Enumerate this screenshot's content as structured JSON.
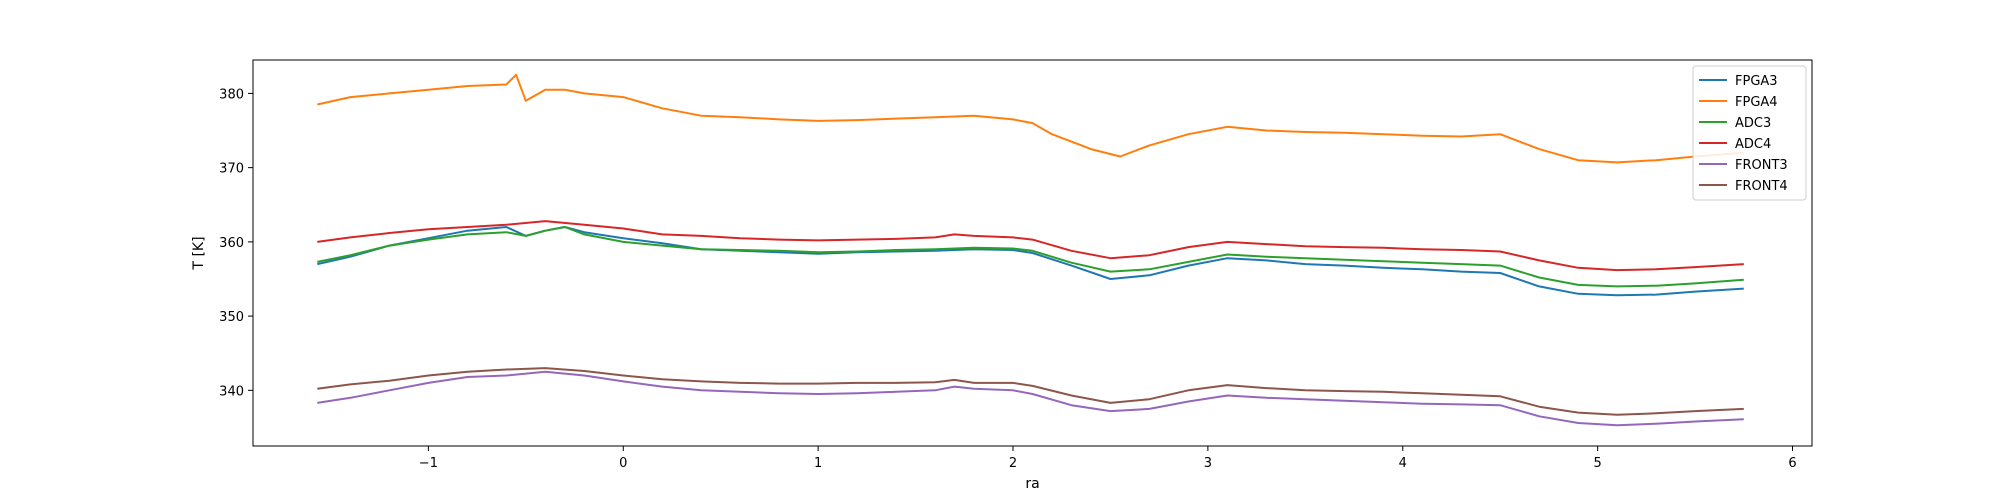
{
  "chart_data": {
    "type": "line",
    "title": "",
    "xlabel": "ra",
    "ylabel": "T [K]",
    "xlim": [
      -1.9,
      6.1
    ],
    "ylim": [
      332.5,
      384.5
    ],
    "xticks": [
      -1,
      0,
      1,
      2,
      3,
      4,
      5,
      6
    ],
    "xtick_labels": [
      "−1",
      "0",
      "1",
      "2",
      "3",
      "4",
      "5",
      "6"
    ],
    "yticks": [
      340,
      350,
      360,
      370,
      380
    ],
    "ytick_labels": [
      "340",
      "350",
      "360",
      "370",
      "380"
    ],
    "grid": false,
    "legend_position": "top-right",
    "series": [
      {
        "name": "FPGA3",
        "color": "#1f77b4",
        "x": [
          -1.57,
          -1.4,
          -1.2,
          -1.0,
          -0.8,
          -0.6,
          -0.5,
          -0.4,
          -0.3,
          -0.2,
          0.0,
          0.2,
          0.4,
          0.6,
          0.8,
          1.0,
          1.2,
          1.4,
          1.6,
          1.8,
          2.0,
          2.1,
          2.3,
          2.5,
          2.7,
          2.9,
          3.1,
          3.3,
          3.5,
          3.7,
          3.9,
          4.1,
          4.3,
          4.5,
          4.7,
          4.9,
          5.1,
          5.3,
          5.5,
          5.75
        ],
        "y": [
          357.0,
          358.0,
          359.5,
          360.5,
          361.5,
          362.0,
          360.8,
          361.5,
          362.0,
          361.3,
          360.5,
          359.8,
          359.0,
          358.8,
          358.6,
          358.4,
          358.6,
          358.7,
          358.8,
          359.0,
          358.9,
          358.5,
          356.8,
          355.0,
          355.5,
          356.8,
          357.8,
          357.5,
          357.0,
          356.8,
          356.5,
          356.3,
          356.0,
          355.8,
          354.0,
          353.0,
          352.8,
          352.9,
          353.3,
          353.7
        ]
      },
      {
        "name": "FPGA4",
        "color": "#ff7f0e",
        "x": [
          -1.57,
          -1.4,
          -1.2,
          -1.0,
          -0.8,
          -0.6,
          -0.55,
          -0.5,
          -0.4,
          -0.3,
          -0.2,
          0.0,
          0.2,
          0.4,
          0.6,
          0.8,
          1.0,
          1.2,
          1.4,
          1.6,
          1.8,
          2.0,
          2.1,
          2.2,
          2.4,
          2.55,
          2.7,
          2.9,
          3.1,
          3.3,
          3.5,
          3.7,
          3.9,
          4.1,
          4.3,
          4.5,
          4.7,
          4.9,
          5.1,
          5.3,
          5.5,
          5.75
        ],
        "y": [
          378.5,
          379.5,
          380.0,
          380.5,
          381.0,
          381.2,
          382.5,
          379.0,
          380.5,
          380.5,
          380.0,
          379.5,
          378.0,
          377.0,
          376.8,
          376.5,
          376.3,
          376.4,
          376.6,
          376.8,
          377.0,
          376.5,
          376.0,
          374.5,
          372.5,
          371.5,
          373.0,
          374.5,
          375.5,
          375.0,
          374.8,
          374.7,
          374.5,
          374.3,
          374.2,
          374.5,
          372.5,
          371.0,
          370.7,
          371.0,
          371.5,
          372.0
        ]
      },
      {
        "name": "ADC3",
        "color": "#2ca02c",
        "x": [
          -1.57,
          -1.4,
          -1.2,
          -1.0,
          -0.8,
          -0.6,
          -0.5,
          -0.4,
          -0.3,
          -0.2,
          0.0,
          0.2,
          0.4,
          0.6,
          0.8,
          1.0,
          1.2,
          1.4,
          1.6,
          1.8,
          2.0,
          2.1,
          2.3,
          2.5,
          2.7,
          2.9,
          3.1,
          3.3,
          3.5,
          3.7,
          3.9,
          4.1,
          4.3,
          4.5,
          4.7,
          4.9,
          5.1,
          5.3,
          5.5,
          5.75
        ],
        "y": [
          357.3,
          358.2,
          359.5,
          360.3,
          361.0,
          361.3,
          360.8,
          361.5,
          362.0,
          361.0,
          360.0,
          359.5,
          359.0,
          358.9,
          358.8,
          358.6,
          358.7,
          358.9,
          359.0,
          359.2,
          359.1,
          358.8,
          357.2,
          356.0,
          356.3,
          357.3,
          358.3,
          358.0,
          357.8,
          357.6,
          357.4,
          357.2,
          357.0,
          356.8,
          355.2,
          354.2,
          354.0,
          354.1,
          354.4,
          354.9
        ]
      },
      {
        "name": "ADC4",
        "color": "#d62728",
        "x": [
          -1.57,
          -1.4,
          -1.2,
          -1.0,
          -0.8,
          -0.6,
          -0.4,
          -0.2,
          0.0,
          0.2,
          0.4,
          0.6,
          0.8,
          1.0,
          1.2,
          1.4,
          1.6,
          1.7,
          1.8,
          2.0,
          2.1,
          2.3,
          2.5,
          2.7,
          2.9,
          3.1,
          3.3,
          3.5,
          3.7,
          3.9,
          4.1,
          4.3,
          4.5,
          4.7,
          4.9,
          5.1,
          5.3,
          5.5,
          5.75
        ],
        "y": [
          360.0,
          360.6,
          361.2,
          361.7,
          362.0,
          362.3,
          362.8,
          362.3,
          361.8,
          361.0,
          360.8,
          360.5,
          360.3,
          360.2,
          360.3,
          360.4,
          360.6,
          361.0,
          360.8,
          360.6,
          360.3,
          358.8,
          357.8,
          358.2,
          359.3,
          360.0,
          359.7,
          359.4,
          359.3,
          359.2,
          359.0,
          358.9,
          358.7,
          357.5,
          356.5,
          356.2,
          356.3,
          356.6,
          357.0
        ]
      },
      {
        "name": "FRONT3",
        "color": "#9467bd",
        "x": [
          -1.57,
          -1.4,
          -1.2,
          -1.0,
          -0.8,
          -0.6,
          -0.4,
          -0.2,
          0.0,
          0.2,
          0.4,
          0.6,
          0.8,
          1.0,
          1.2,
          1.4,
          1.6,
          1.7,
          1.8,
          2.0,
          2.1,
          2.3,
          2.5,
          2.7,
          2.9,
          3.1,
          3.3,
          3.5,
          3.7,
          3.9,
          4.1,
          4.3,
          4.5,
          4.7,
          4.9,
          5.1,
          5.3,
          5.5,
          5.75
        ],
        "y": [
          338.3,
          339.0,
          340.0,
          341.0,
          341.8,
          342.0,
          342.5,
          342.0,
          341.2,
          340.5,
          340.0,
          339.8,
          339.6,
          339.5,
          339.6,
          339.8,
          340.0,
          340.5,
          340.2,
          340.0,
          339.5,
          338.0,
          337.2,
          337.5,
          338.5,
          339.3,
          339.0,
          338.8,
          338.6,
          338.4,
          338.2,
          338.1,
          338.0,
          336.5,
          335.6,
          335.3,
          335.5,
          335.8,
          336.1
        ]
      },
      {
        "name": "FRONT4",
        "color": "#8c564b",
        "x": [
          -1.57,
          -1.4,
          -1.2,
          -1.0,
          -0.8,
          -0.6,
          -0.4,
          -0.2,
          0.0,
          0.2,
          0.4,
          0.6,
          0.8,
          1.0,
          1.2,
          1.4,
          1.6,
          1.7,
          1.8,
          2.0,
          2.1,
          2.3,
          2.5,
          2.7,
          2.9,
          3.1,
          3.3,
          3.5,
          3.7,
          3.9,
          4.1,
          4.3,
          4.5,
          4.7,
          4.9,
          5.1,
          5.3,
          5.5,
          5.75
        ],
        "y": [
          340.2,
          340.8,
          341.3,
          342.0,
          342.5,
          342.8,
          343.0,
          342.6,
          342.0,
          341.5,
          341.2,
          341.0,
          340.9,
          340.9,
          341.0,
          341.0,
          341.1,
          341.4,
          341.0,
          341.0,
          340.6,
          339.3,
          338.3,
          338.8,
          340.0,
          340.7,
          340.3,
          340.0,
          339.9,
          339.8,
          339.6,
          339.4,
          339.2,
          337.8,
          337.0,
          336.7,
          336.9,
          337.2,
          337.5
        ]
      }
    ]
  }
}
